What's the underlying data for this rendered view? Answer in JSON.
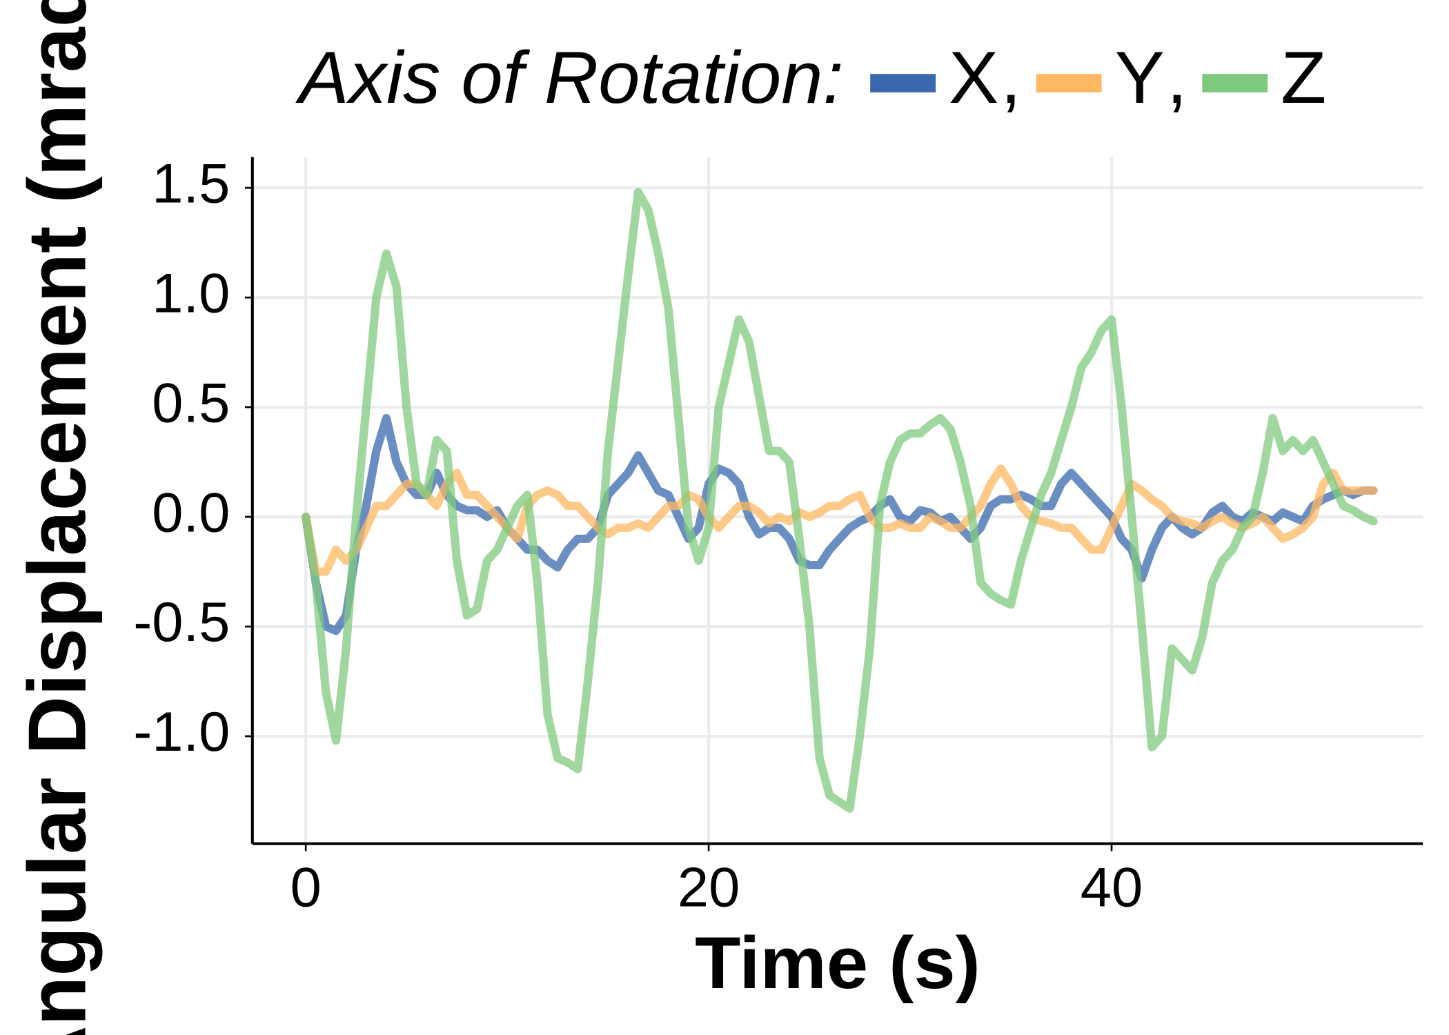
{
  "chart_data": {
    "type": "line",
    "x_label": "Time (s)",
    "y_label": "Angular Displacement (mrad)",
    "legend_title": "Axis of Rotation:",
    "legend_separator": ",",
    "legend_position": "top",
    "grid": true,
    "xlim": [
      -2.65,
      55.45
    ],
    "ylim": [
      -1.49,
      1.64
    ],
    "xticks": [
      0,
      20,
      40
    ],
    "yticks": [
      {
        "value": -1.0,
        "label": "-1.0"
      },
      -0.5,
      {
        "value": 0,
        "label": "0.0"
      },
      0.5,
      {
        "value": 1.0,
        "label": "1.0"
      },
      1.5
    ],
    "x": [
      0,
      0.5,
      1,
      1.5,
      2,
      2.5,
      3,
      3.5,
      4,
      4.5,
      5,
      5.5,
      6,
      6.5,
      7,
      7.5,
      8,
      8.5,
      9,
      9.5,
      10,
      10.5,
      11,
      11.5,
      12,
      12.5,
      13,
      13.5,
      14,
      14.5,
      15,
      15.5,
      16,
      16.5,
      17,
      17.5,
      18,
      18.5,
      19,
      19.5,
      20,
      20.5,
      21,
      21.5,
      22,
      22.5,
      23,
      23.5,
      24,
      24.5,
      25,
      25.5,
      26,
      26.5,
      27,
      27.5,
      28,
      28.5,
      29,
      29.5,
      30,
      30.5,
      31,
      31.5,
      32,
      32.5,
      33,
      33.5,
      34,
      34.5,
      35,
      35.5,
      36,
      36.5,
      37,
      37.5,
      38,
      38.5,
      39,
      39.5,
      40,
      40.5,
      41,
      41.5,
      42,
      42.5,
      43,
      43.5,
      44,
      44.5,
      45,
      45.5,
      46,
      46.5,
      47,
      47.5,
      48,
      48.5,
      49,
      49.5,
      50,
      50.5,
      51,
      51.5,
      52,
      52.5,
      53
    ],
    "series": [
      {
        "name": "X",
        "color": "#3a68ae",
        "values": [
          0,
          -0.3,
          -0.5,
          -0.52,
          -0.45,
          -0.15,
          0.05,
          0.3,
          0.45,
          0.25,
          0.15,
          0.1,
          0.1,
          0.2,
          0.1,
          0.05,
          0.03,
          0.03,
          0,
          0.03,
          -0.05,
          -0.1,
          -0.15,
          -0.15,
          -0.2,
          -0.23,
          -0.15,
          -0.1,
          -0.1,
          -0.05,
          0.1,
          0.15,
          0.2,
          0.28,
          0.2,
          0.12,
          0.1,
          0,
          -0.1,
          -0.05,
          0.15,
          0.22,
          0.2,
          0.15,
          0,
          -0.08,
          -0.05,
          -0.05,
          -0.1,
          -0.2,
          -0.22,
          -0.22,
          -0.15,
          -0.1,
          -0.05,
          -0.02,
          0,
          0.05,
          0.08,
          0,
          -0.02,
          0.03,
          0.02,
          -0.02,
          0,
          -0.05,
          -0.1,
          -0.05,
          0.05,
          0.08,
          0.08,
          0.1,
          0.08,
          0.05,
          0.05,
          0.15,
          0.2,
          0.15,
          0.1,
          0.05,
          0,
          -0.1,
          -0.15,
          -0.28,
          -0.15,
          -0.05,
          0,
          -0.05,
          -0.08,
          -0.05,
          0.02,
          0.05,
          0,
          -0.02,
          0.02,
          0,
          -0.02,
          0.02,
          0,
          -0.02,
          0.05,
          0.08,
          0.1,
          0.12,
          0.1,
          0.12,
          0.12
        ]
      },
      {
        "name": "Y",
        "color": "#fdb863",
        "values": [
          0,
          -0.25,
          -0.25,
          -0.15,
          -0.2,
          -0.15,
          -0.05,
          0.05,
          0.05,
          0.1,
          0.15,
          0.15,
          0.1,
          0.05,
          0.15,
          0.2,
          0.1,
          0.1,
          0.05,
          0,
          -0.05,
          -0.1,
          0.05,
          0.1,
          0.12,
          0.1,
          0.05,
          0.05,
          0,
          -0.05,
          -0.08,
          -0.05,
          -0.05,
          -0.03,
          -0.05,
          0,
          0.05,
          0.05,
          0.1,
          0.08,
          0,
          -0.05,
          0,
          0.05,
          0.05,
          0.02,
          -0.03,
          0,
          -0.02,
          0.02,
          0,
          0.02,
          0.05,
          0.05,
          0.08,
          0.1,
          0,
          -0.05,
          -0.05,
          -0.03,
          -0.05,
          -0.05,
          0,
          -0.02,
          -0.05,
          -0.05,
          0,
          0.05,
          0.15,
          0.22,
          0.15,
          0.05,
          0,
          -0.02,
          -0.03,
          -0.05,
          -0.05,
          -0.1,
          -0.15,
          -0.15,
          -0.05,
          0.05,
          0.15,
          0.12,
          0.08,
          0.05,
          0,
          -0.02,
          -0.03,
          -0.05,
          -0.02,
          0,
          -0.03,
          -0.05,
          -0.03,
          0,
          -0.05,
          -0.1,
          -0.08,
          -0.05,
          0,
          0.15,
          0.2,
          0.12,
          0.12,
          0.12,
          0.12
        ]
      },
      {
        "name": "Z",
        "color": "#7fc97f",
        "values": [
          0,
          -0.3,
          -0.8,
          -1.02,
          -0.6,
          0,
          0.5,
          1.0,
          1.2,
          1.05,
          0.5,
          0.15,
          0.1,
          0.35,
          0.3,
          -0.2,
          -0.45,
          -0.42,
          -0.2,
          -0.15,
          -0.05,
          0.05,
          0.1,
          -0.3,
          -0.9,
          -1.1,
          -1.12,
          -1.15,
          -0.75,
          -0.3,
          0.3,
          0.7,
          1.1,
          1.48,
          1.4,
          1.2,
          0.95,
          0.45,
          -0.05,
          -0.2,
          -0.05,
          0.5,
          0.7,
          0.9,
          0.8,
          0.55,
          0.3,
          0.3,
          0.25,
          -0.1,
          -0.5,
          -1.1,
          -1.27,
          -1.3,
          -1.33,
          -1.0,
          -0.6,
          0.05,
          0.25,
          0.35,
          0.38,
          0.38,
          0.42,
          0.45,
          0.4,
          0.25,
          0.05,
          -0.3,
          -0.35,
          -0.38,
          -0.4,
          -0.2,
          -0.05,
          0.1,
          0.2,
          0.35,
          0.5,
          0.68,
          0.75,
          0.85,
          0.9,
          0.5,
          0,
          -0.5,
          -1.05,
          -1.0,
          -0.6,
          -0.65,
          -0.7,
          -0.55,
          -0.3,
          -0.2,
          -0.15,
          -0.05,
          0,
          0.2,
          0.45,
          0.3,
          0.35,
          0.3,
          0.35,
          0.25,
          0.15,
          0.05,
          0.03,
          0,
          -0.02
        ]
      }
    ]
  }
}
